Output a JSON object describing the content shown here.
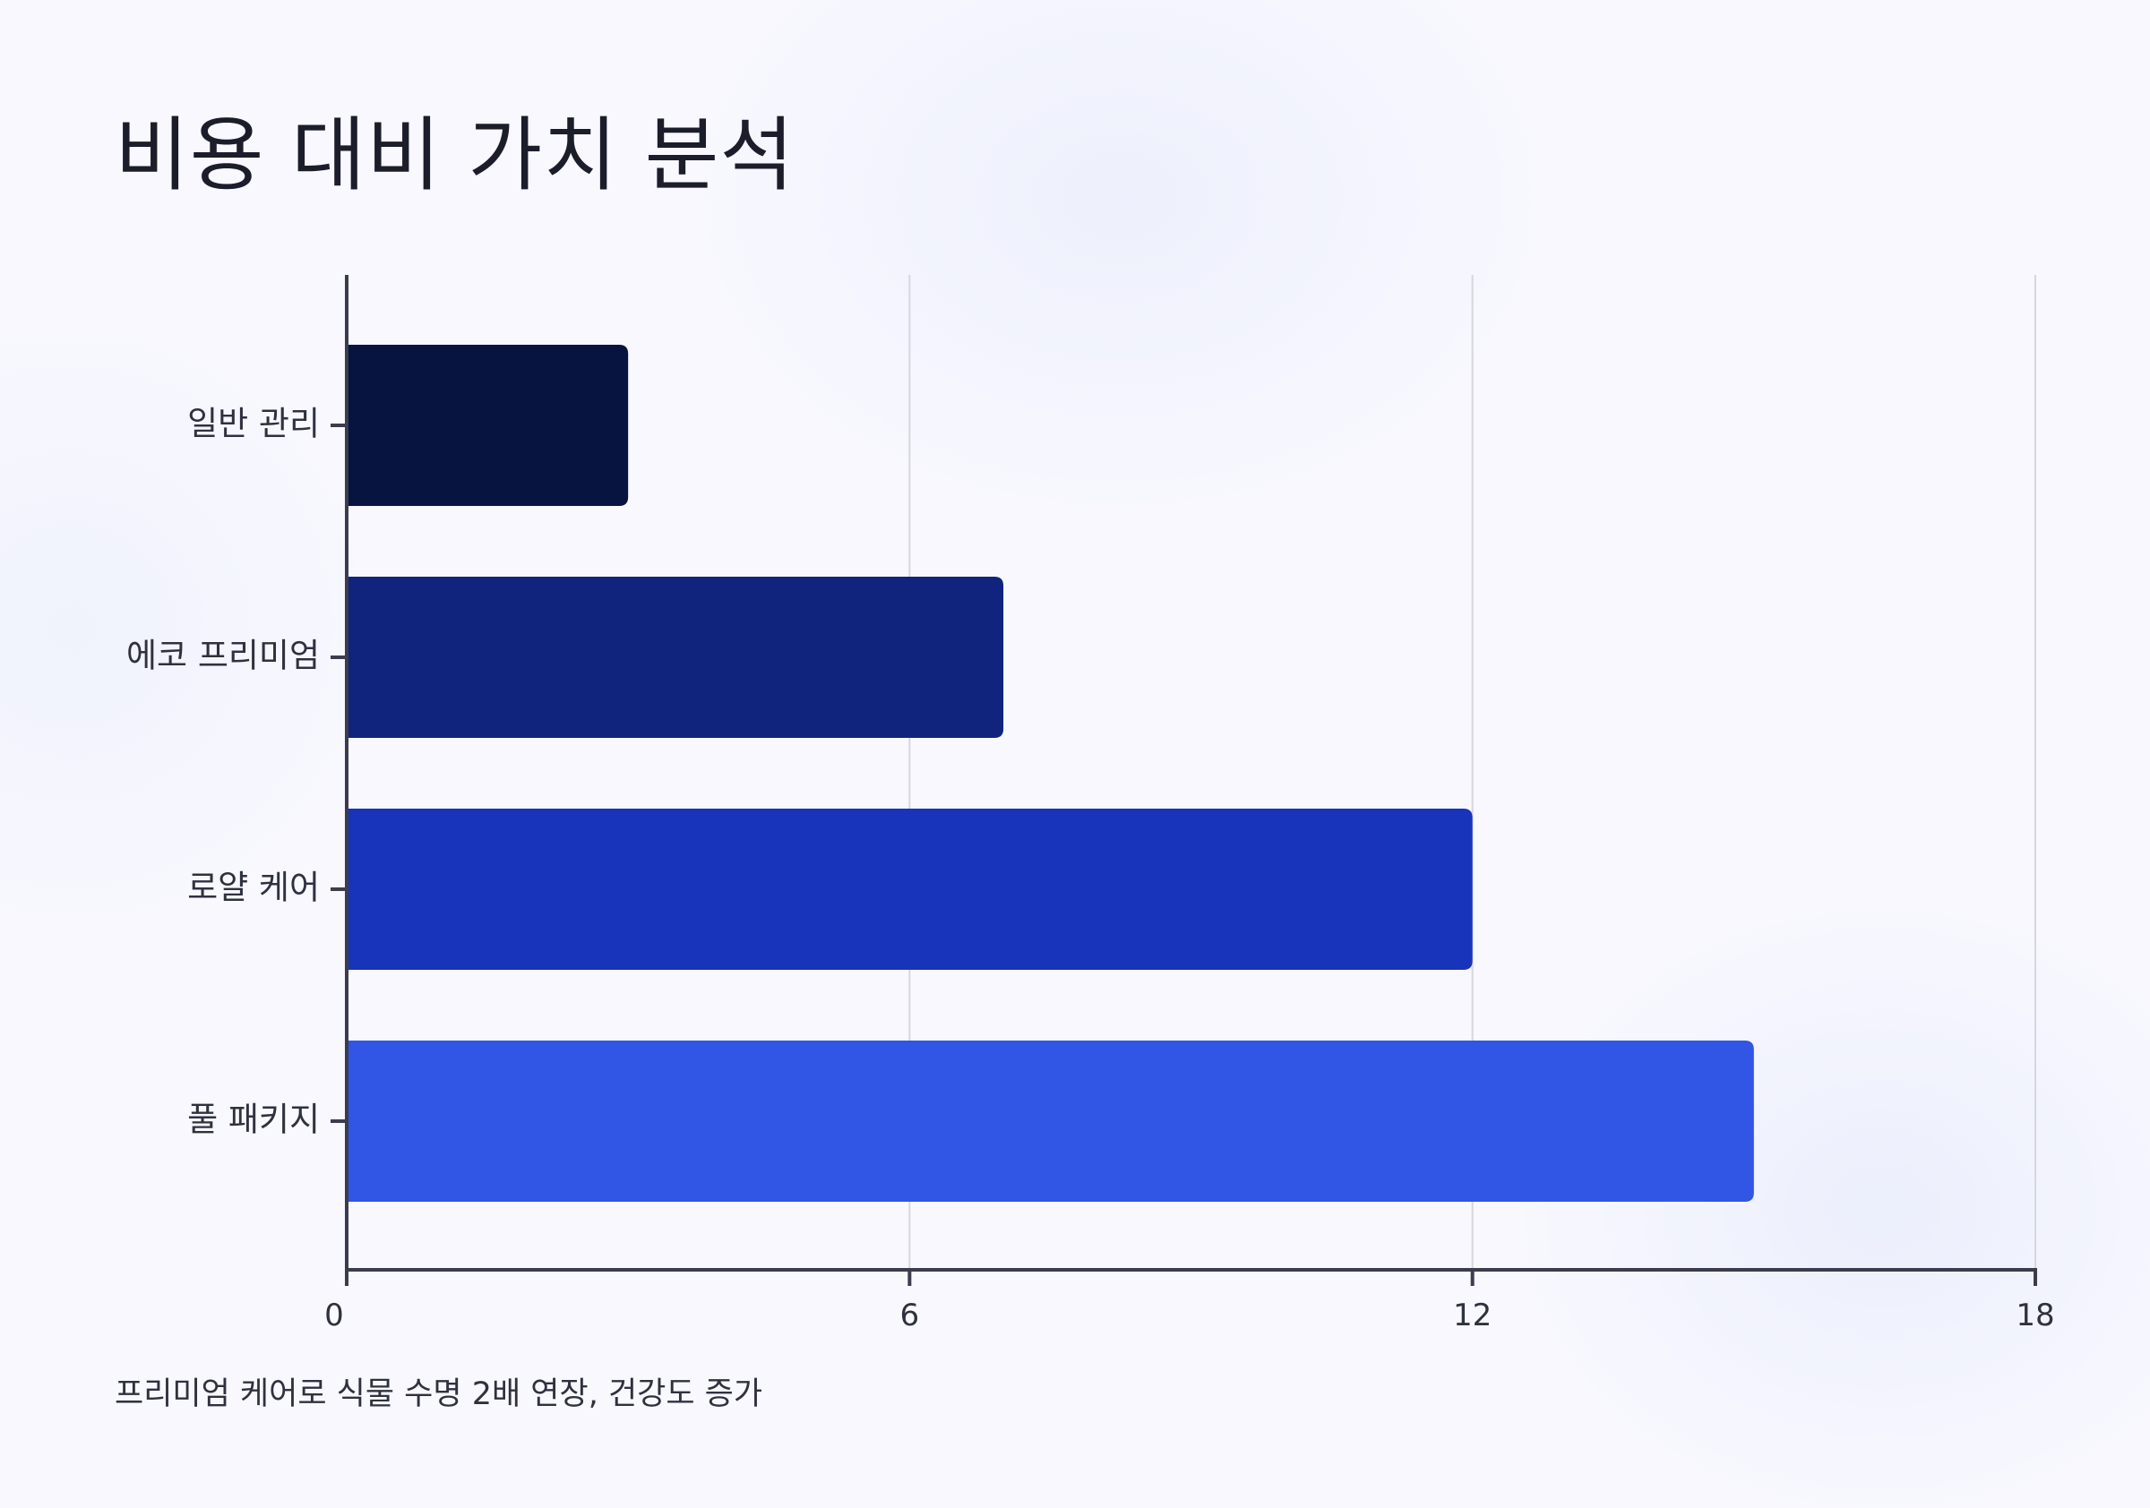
{
  "page": {
    "title": "비용 대비 가치 분석",
    "caption": "프리미엄 케어로 식물 수명 2배 연장, 건강도 증가"
  },
  "colors": {
    "background": "#f8f8fe",
    "axis": "#3b3d4e",
    "grid": "#d6d7de",
    "bars": [
      "#081440",
      "#10247d",
      "#1834bb",
      "#3155e4"
    ]
  },
  "chart_data": {
    "type": "bar",
    "orientation": "horizontal",
    "categories": [
      "일반 관리",
      "에코 프리미엄",
      "로얄 케어",
      "풀 패키지"
    ],
    "values": [
      3,
      7,
      12,
      15
    ],
    "xlim": [
      0,
      18
    ],
    "xticks": [
      0,
      6,
      12,
      18
    ],
    "xlabel": "",
    "ylabel": "",
    "grid": "vertical"
  }
}
